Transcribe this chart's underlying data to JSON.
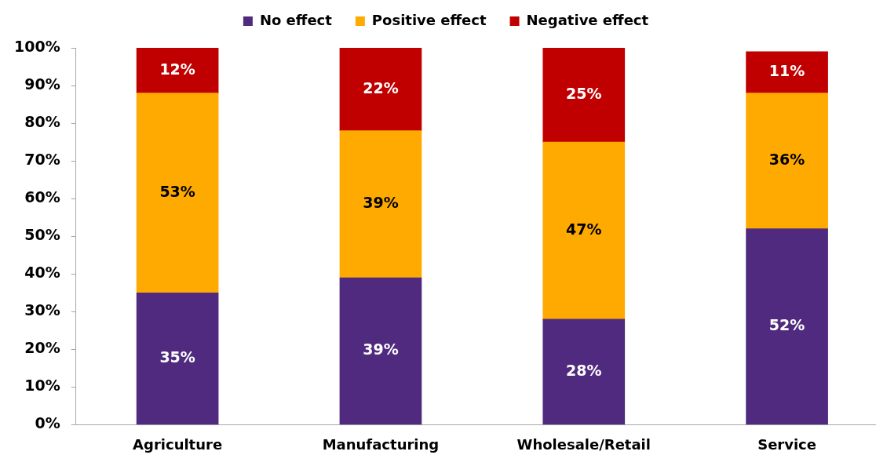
{
  "chart_data": {
    "type": "bar",
    "stacked": true,
    "categories": [
      "Agriculture",
      "Manufacturing",
      "Wholesale/Retail",
      "Service"
    ],
    "series": [
      {
        "name": "No effect",
        "color": "#4f2a7e",
        "values": [
          35,
          39,
          28,
          52
        ],
        "value_labels": [
          "35%",
          "39%",
          "28%",
          "52%"
        ]
      },
      {
        "name": "Positive effect",
        "color": "#ffaa00",
        "values": [
          53,
          39,
          47,
          36
        ],
        "value_labels": [
          "53%",
          "39%",
          "47%",
          "36%"
        ]
      },
      {
        "name": "Negative effect",
        "color": "#c00000",
        "values": [
          12,
          22,
          25,
          11
        ],
        "value_labels": [
          "12%",
          "22%",
          "25%",
          "11%"
        ]
      }
    ],
    "ylim": [
      0,
      100
    ],
    "yticks": [
      {
        "value": 0,
        "label": "0%"
      },
      {
        "value": 10,
        "label": "10%"
      },
      {
        "value": 20,
        "label": "20%"
      },
      {
        "value": 30,
        "label": "30%"
      },
      {
        "value": 40,
        "label": "40%"
      },
      {
        "value": 50,
        "label": "50%"
      },
      {
        "value": 60,
        "label": "60%"
      },
      {
        "value": 70,
        "label": "70%"
      },
      {
        "value": 80,
        "label": "80%"
      },
      {
        "value": 90,
        "label": "90%"
      },
      {
        "value": 100,
        "label": "100%"
      }
    ],
    "grid": false,
    "legend": "top"
  }
}
